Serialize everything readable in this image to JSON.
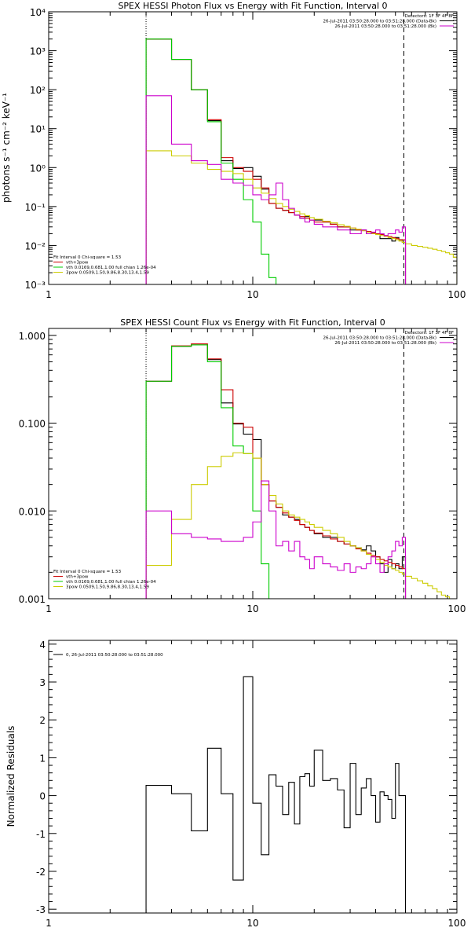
{
  "chart_data": [
    {
      "type": "line",
      "title": "SPEX HESSI Photon Flux vs Energy with Fit Function, Interval 0",
      "xlabel": "",
      "ylabel": "photons s⁻¹ cm⁻² keV⁻¹",
      "xscale": "log",
      "yscale": "log",
      "xlim": [
        1,
        100
      ],
      "ylim": [
        0.001,
        10000
      ],
      "x_ticks": [
        1,
        10,
        100
      ],
      "x_tick_labels": [
        "1",
        "10",
        "100"
      ],
      "y_ticks": [
        0.001,
        0.01,
        0.1,
        1,
        10,
        100,
        1000,
        10000
      ],
      "y_tick_labels": [
        "10⁻³",
        "10⁻²",
        "10⁻¹",
        "10⁰",
        "10¹",
        "10²",
        "10³",
        "10⁴"
      ],
      "vlines": [
        {
          "x": 3.0,
          "style": "dotted"
        },
        {
          "x": 55.0,
          "style": "dashed"
        }
      ],
      "header_lines": [
        {
          "text": "Detectors: 1F 3F 4F 8F",
          "line": false
        },
        {
          "text": "26-Jul-2011 03:50:28.000 to 03:51:28.000 (Data-Bk)",
          "line": true,
          "color": "#000000"
        },
        {
          "text": "26-Jul-2011 03:50:28.000 to 03:51:28.000 (Bk)",
          "line": true,
          "color": "#cc00cc"
        }
      ],
      "legend_lines": [
        {
          "text": "Fit Interval 0   Chi-square = 1.53",
          "line": false
        },
        {
          "text": "vth+3pow",
          "line": true,
          "color": "#cc0000"
        },
        {
          "text": "vth 0.0169,0.681,1.00  full chian 1.26e-04",
          "line": true,
          "color": "#00cc00"
        },
        {
          "text": "3pow 0.0509,1.50,9.86,8.30,13.4,1.59",
          "line": true,
          "color": "#cccc00"
        }
      ],
      "bin_edges": [
        3,
        4,
        5,
        6,
        7,
        8,
        9,
        10,
        11,
        12,
        13,
        14,
        15,
        16,
        17,
        18,
        19,
        20,
        22,
        24,
        26,
        28,
        30,
        32,
        34,
        36,
        38,
        40,
        42,
        44,
        46,
        48,
        50,
        52,
        54,
        56,
        58,
        60,
        64,
        68,
        72,
        76,
        80,
        84,
        88,
        92,
        96,
        100
      ],
      "series": [
        {
          "color": "#000000",
          "end_bin": 35,
          "values": [
            2000,
            600,
            100,
            16,
            1.5,
            0.95,
            1.0,
            0.6,
            0.28,
            0.12,
            0.09,
            0.08,
            0.07,
            0.06,
            0.05,
            0.055,
            0.045,
            0.045,
            0.04,
            0.035,
            0.03,
            0.03,
            0.025,
            0.025,
            0.025,
            0.02,
            0.02,
            0.02,
            0.015,
            0.015,
            0.015,
            0.013,
            0.016,
            0.014,
            0.012
          ]
        },
        {
          "color": "#cc0000",
          "end_bin": 35,
          "values": [
            2000,
            600,
            100,
            17,
            1.8,
            1.0,
            0.8,
            0.5,
            0.3,
            0.12,
            0.09,
            0.08,
            0.07,
            0.06,
            0.055,
            0.05,
            0.045,
            0.04,
            0.04,
            0.035,
            0.03,
            0.03,
            0.028,
            0.025,
            0.024,
            0.023,
            0.021,
            0.02,
            0.019,
            0.018,
            0.017,
            0.016,
            0.015,
            0.014,
            0.014
          ]
        },
        {
          "color": "#00cc00",
          "end_bin": 10,
          "values": [
            2000,
            600,
            100,
            15,
            1.3,
            0.5,
            0.15,
            0.04,
            0.006,
            0.0015
          ]
        },
        {
          "color": "#cccc00",
          "end_bin": 47,
          "values": [
            2.7,
            2.0,
            1.3,
            0.9,
            0.8,
            0.7,
            0.5,
            0.3,
            0.22,
            0.16,
            0.12,
            0.1,
            0.085,
            0.075,
            0.065,
            0.058,
            0.052,
            0.047,
            0.042,
            0.038,
            0.034,
            0.031,
            0.028,
            0.026,
            0.024,
            0.022,
            0.02,
            0.019,
            0.018,
            0.017,
            0.016,
            0.015,
            0.014,
            0.013,
            0.012,
            0.011,
            0.011,
            0.01,
            0.0095,
            0.009,
            0.0085,
            0.008,
            0.0075,
            0.007,
            0.0065,
            0.006,
            0.005
          ]
        },
        {
          "color": "#cc00cc",
          "end_bin": 35,
          "values": [
            70,
            4,
            1.5,
            1.2,
            0.5,
            0.4,
            0.35,
            0.2,
            0.15,
            0.2,
            0.4,
            0.15,
            0.09,
            0.06,
            0.05,
            0.04,
            0.045,
            0.035,
            0.03,
            0.03,
            0.025,
            0.025,
            0.02,
            0.02,
            0.025,
            0.02,
            0.022,
            0.025,
            0.02,
            0.018,
            0.02,
            0.02,
            0.025,
            0.022,
            0.03
          ]
        }
      ]
    },
    {
      "type": "line",
      "title": "SPEX HESSI Count Flux vs Energy with Fit Function, Interval 0",
      "xlabel": "",
      "ylabel": "",
      "xscale": "log",
      "yscale": "log",
      "xlim": [
        1,
        100
      ],
      "ylim": [
        0.001,
        1.2
      ],
      "x_ticks": [
        1,
        10,
        100
      ],
      "x_tick_labels": [
        "1",
        "10",
        "100"
      ],
      "y_ticks": [
        0.001,
        0.01,
        0.1,
        1
      ],
      "y_tick_labels": [
        "0.001",
        "0.010",
        "0.100",
        "1.000"
      ],
      "vlines": [
        {
          "x": 3.0,
          "style": "dotted"
        },
        {
          "x": 55.0,
          "style": "dashed"
        }
      ],
      "header_lines": [
        {
          "text": "Detectors: 1F 3F 4F 8F",
          "line": false
        },
        {
          "text": "26-Jul-2011 03:50:28.000 to 03:51:28.000 (Data-Bk)",
          "line": true,
          "color": "#000000"
        },
        {
          "text": "26-Jul-2011 03:50:28.000 to 03:51:28.000 (Bk)",
          "line": true,
          "color": "#cc00cc"
        }
      ],
      "legend_lines": [
        {
          "text": "Fit Interval 0   Chi-square = 1.53",
          "line": false
        },
        {
          "text": "vth+3pow",
          "line": true,
          "color": "#cc0000"
        },
        {
          "text": "vth 0.0169,0.681,1.00  full chian 1.26e-04",
          "line": true,
          "color": "#00cc00"
        },
        {
          "text": "3pow 0.0509,1.50,9.86,8.30,13.4,1.59",
          "line": true,
          "color": "#cccc00"
        }
      ],
      "bin_edges": [
        3,
        4,
        5,
        6,
        7,
        8,
        9,
        10,
        11,
        12,
        13,
        14,
        15,
        16,
        17,
        18,
        19,
        20,
        22,
        24,
        26,
        28,
        30,
        32,
        34,
        36,
        38,
        40,
        42,
        44,
        46,
        48,
        50,
        52,
        54,
        56,
        58,
        60,
        64,
        68,
        72,
        76,
        80,
        84,
        88,
        92,
        96,
        100
      ],
      "series": [
        {
          "color": "#000000",
          "end_bin": 35,
          "values": [
            0.3,
            0.75,
            0.78,
            0.53,
            0.17,
            0.098,
            0.075,
            0.065,
            0.02,
            0.013,
            0.011,
            0.009,
            0.0085,
            0.008,
            0.007,
            0.0065,
            0.006,
            0.0055,
            0.005,
            0.005,
            0.0045,
            0.0042,
            0.004,
            0.0038,
            0.0036,
            0.004,
            0.0035,
            0.003,
            0.0025,
            0.002,
            0.0028,
            0.0022,
            0.0025,
            0.0022,
            0.003
          ]
        },
        {
          "color": "#cc0000",
          "end_bin": 35,
          "values": [
            0.3,
            0.76,
            0.8,
            0.54,
            0.24,
            0.1,
            0.09,
            0.04,
            0.02,
            0.013,
            0.011,
            0.0095,
            0.0085,
            0.0078,
            0.007,
            0.0065,
            0.006,
            0.0056,
            0.0052,
            0.0048,
            0.0045,
            0.0042,
            0.004,
            0.0037,
            0.0035,
            0.0033,
            0.0031,
            0.003,
            0.0028,
            0.0027,
            0.0026,
            0.0025,
            0.0024,
            0.0023,
            0.0022
          ]
        },
        {
          "color": "#00cc00",
          "end_bin": 9,
          "values": [
            0.3,
            0.75,
            0.78,
            0.5,
            0.15,
            0.055,
            0.045,
            0.01,
            0.0025
          ]
        },
        {
          "color": "#cccc00",
          "end_bin": 47,
          "values": [
            0.0024,
            0.008,
            0.02,
            0.032,
            0.042,
            0.046,
            0.045,
            0.04,
            0.02,
            0.015,
            0.012,
            0.01,
            0.009,
            0.0085,
            0.008,
            0.0075,
            0.007,
            0.0065,
            0.006,
            0.0055,
            0.005,
            0.0045,
            0.004,
            0.0038,
            0.0035,
            0.0032,
            0.003,
            0.0028,
            0.0026,
            0.0024,
            0.0023,
            0.0022,
            0.0021,
            0.002,
            0.0019,
            0.0018,
            0.0018,
            0.0017,
            0.0016,
            0.0015,
            0.0014,
            0.0013,
            0.0012,
            0.0011,
            0.00105,
            0.001,
            0.001
          ]
        },
        {
          "color": "#cc00cc",
          "end_bin": 35,
          "values": [
            0.01,
            0.0055,
            0.005,
            0.0048,
            0.0045,
            0.0045,
            0.005,
            0.0075,
            0.022,
            0.01,
            0.004,
            0.0045,
            0.0035,
            0.0045,
            0.003,
            0.0028,
            0.0022,
            0.003,
            0.0025,
            0.0023,
            0.0021,
            0.0025,
            0.002,
            0.0023,
            0.0022,
            0.0025,
            0.003,
            0.0025,
            0.002,
            0.0025,
            0.003,
            0.0035,
            0.0045,
            0.004,
            0.005
          ]
        }
      ]
    },
    {
      "type": "line",
      "title": "",
      "xlabel": "",
      "ylabel": "Normalized Residuals",
      "xscale": "log",
      "yscale": "linear",
      "xlim": [
        1,
        100
      ],
      "ylim": [
        -3.1,
        4.1
      ],
      "x_ticks": [
        1,
        10,
        100
      ],
      "x_tick_labels": [
        "1",
        "10",
        "100"
      ],
      "y_ticks": [
        -3,
        -2,
        -1,
        0,
        1,
        2,
        3,
        4
      ],
      "y_tick_labels": [
        "-3",
        "-2",
        "-1",
        "0",
        "1",
        "2",
        "3",
        "4"
      ],
      "header_lines": [],
      "legend_lines": [
        {
          "text": "0, 26-Jul-2011 03:50:28.000 to 03:51:28.000",
          "line": true,
          "color": "#000000"
        }
      ],
      "bin_edges": [
        3,
        4,
        5,
        6,
        7,
        8,
        9,
        10,
        11,
        12,
        13,
        14,
        15,
        16,
        17,
        18,
        19,
        20,
        22,
        24,
        26,
        28,
        30,
        32,
        34,
        36,
        38,
        40,
        42,
        44,
        46,
        48,
        50,
        52,
        54,
        56
      ],
      "drop_to_bottom": true,
      "series": [
        {
          "color": "#000000",
          "end_bin": 35,
          "values": [
            0.27,
            0.05,
            -0.93,
            1.25,
            0.05,
            -2.23,
            3.14,
            -0.2,
            -1.56,
            0.55,
            0.25,
            -0.5,
            0.35,
            -0.75,
            0.5,
            0.58,
            0.25,
            1.2,
            0.4,
            0.45,
            0.15,
            -0.85,
            0.85,
            -0.5,
            0.2,
            0.45,
            0.0,
            -0.7,
            0.1,
            0.0,
            -0.1,
            -0.6,
            0.85,
            0.0,
            0.0
          ]
        }
      ]
    }
  ]
}
